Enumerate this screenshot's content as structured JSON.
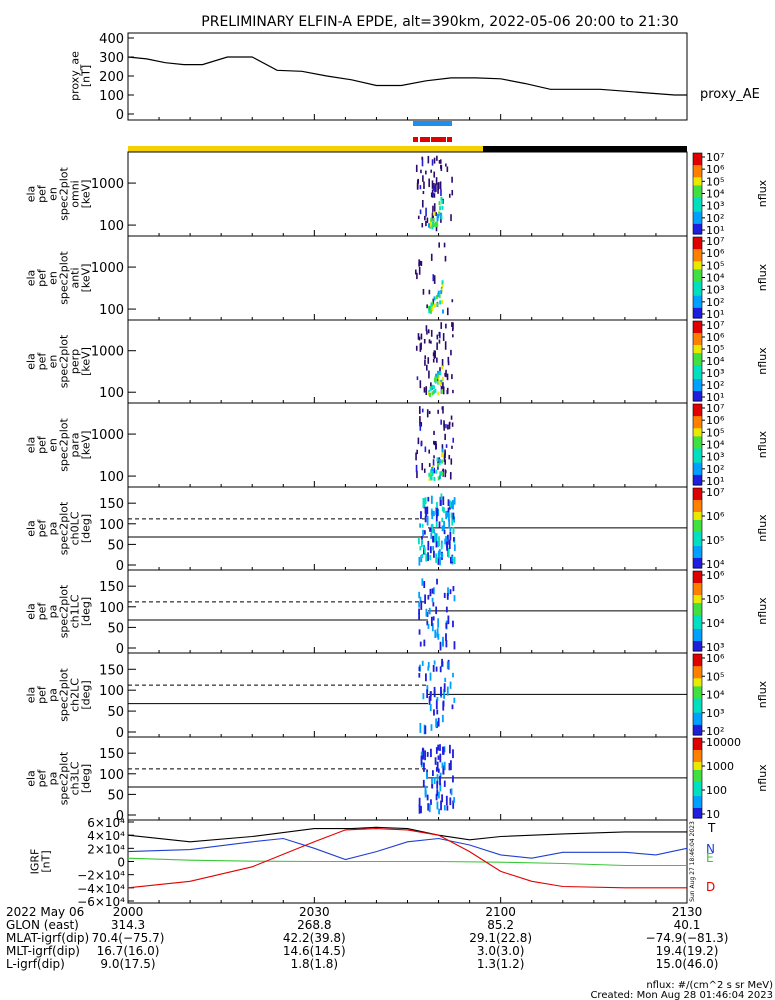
{
  "title": "PRELIMINARY ELFIN-A EPDE, alt=390km, 2022-05-06 20:00 to 21:30",
  "colors": {
    "day": "#f5d000",
    "night": "#000000",
    "blue_bar": "#1e8ff0",
    "red_bar": "#e00000"
  },
  "chart_data": [
    {
      "name": "proxy_ae",
      "type": "line",
      "ylabel_lines": [
        "proxy_ae",
        "[nT]"
      ],
      "right_label": "proxy_AE",
      "ylim": [
        0,
        400
      ],
      "yticks": [
        "400",
        "300",
        "200",
        "100",
        "0"
      ],
      "x": [
        0,
        3,
        6,
        9,
        12,
        16,
        20,
        24,
        28,
        32,
        36,
        40,
        44,
        48,
        52,
        56,
        60,
        64,
        68,
        72,
        76,
        80,
        84,
        88,
        90
      ],
      "values": [
        300,
        290,
        270,
        260,
        260,
        300,
        300,
        230,
        225,
        200,
        180,
        150,
        150,
        175,
        190,
        190,
        185,
        160,
        130,
        130,
        130,
        120,
        110,
        100,
        100
      ]
    },
    {
      "name": "omni",
      "type": "heatmap",
      "ylabel_lines": [
        "ela",
        "pef",
        "en",
        "spec2plot",
        "omni",
        "[keV]"
      ],
      "yticks": [
        "1000",
        "100"
      ],
      "scale": "log",
      "colorbar_ticks": [
        "10⁷",
        "10⁶",
        "10⁵",
        "10⁴",
        "10³",
        "10²",
        "10¹"
      ],
      "colorbar_label": "nflux"
    },
    {
      "name": "anti",
      "type": "heatmap",
      "ylabel_lines": [
        "ela",
        "pef",
        "en",
        "spec2plot",
        "anti",
        "[keV]"
      ],
      "yticks": [
        "1000",
        "100"
      ],
      "scale": "log",
      "colorbar_ticks": [
        "10⁷",
        "10⁶",
        "10⁵",
        "10⁴",
        "10³",
        "10²",
        "10¹"
      ],
      "colorbar_label": "nflux"
    },
    {
      "name": "perp",
      "type": "heatmap",
      "ylabel_lines": [
        "ela",
        "pef",
        "en",
        "spec2plot",
        "perp",
        "[keV]"
      ],
      "yticks": [
        "1000",
        "100"
      ],
      "scale": "log",
      "colorbar_ticks": [
        "10⁷",
        "10⁶",
        "10⁵",
        "10⁴",
        "10³",
        "10²",
        "10¹"
      ],
      "colorbar_label": "nflux"
    },
    {
      "name": "para",
      "type": "heatmap",
      "ylabel_lines": [
        "ela",
        "pef",
        "en",
        "spec2plot",
        "para",
        "[keV]"
      ],
      "yticks": [
        "1000",
        "100"
      ],
      "scale": "log",
      "colorbar_ticks": [
        "10⁷",
        "10⁶",
        "10⁵",
        "10⁴",
        "10³",
        "10²",
        "10¹"
      ],
      "colorbar_label": "nflux"
    },
    {
      "name": "ch0LC",
      "type": "heatmap",
      "ylabel_lines": [
        "ela",
        "pef",
        "pa",
        "spec2plot",
        "ch0LC",
        "[deg]"
      ],
      "yticks": [
        "150",
        "100",
        "50",
        "0"
      ],
      "ylim": [
        0,
        180
      ],
      "colorbar_ticks": [
        "10⁷",
        "10⁶",
        "10⁵",
        "10⁴"
      ],
      "colorbar_label": "nflux"
    },
    {
      "name": "ch1LC",
      "type": "heatmap",
      "ylabel_lines": [
        "ela",
        "pef",
        "pa",
        "spec2plot",
        "ch1LC",
        "[deg]"
      ],
      "yticks": [
        "150",
        "100",
        "50",
        "0"
      ],
      "ylim": [
        0,
        180
      ],
      "colorbar_ticks": [
        "10⁶",
        "10⁵",
        "10⁴",
        "10³"
      ],
      "colorbar_label": "nflux"
    },
    {
      "name": "ch2LC",
      "type": "heatmap",
      "ylabel_lines": [
        "ela",
        "pef",
        "pa",
        "spec2plot",
        "ch2LC",
        "[deg]"
      ],
      "yticks": [
        "150",
        "100",
        "50",
        "0"
      ],
      "ylim": [
        0,
        180
      ],
      "colorbar_ticks": [
        "10⁶",
        "10⁵",
        "10⁴",
        "10³",
        "10²"
      ],
      "colorbar_label": "nflux"
    },
    {
      "name": "ch3LC",
      "type": "heatmap",
      "ylabel_lines": [
        "ela",
        "pef",
        "pa",
        "spec2plot",
        "ch3LC",
        "[deg]"
      ],
      "yticks": [
        "150",
        "100",
        "50",
        "0"
      ],
      "ylim": [
        0,
        180
      ],
      "colorbar_ticks": [
        "10000",
        "1000",
        "100",
        "10"
      ],
      "colorbar_label": "nflux"
    },
    {
      "name": "IGRF",
      "type": "line",
      "ylabel_lines": [
        "IGRF",
        "[nT]"
      ],
      "yticks": [
        "6×10⁴",
        "4×10⁴",
        "2×10⁴",
        "0",
        "−2×10⁴",
        "−4×10⁴",
        "−6×10⁴"
      ],
      "ylim": [
        -60000,
        60000
      ],
      "series": [
        {
          "name": "T",
          "color": "#000000",
          "x": [
            0,
            10,
            20,
            30,
            36,
            40,
            45,
            50,
            55,
            60,
            70,
            80,
            90
          ],
          "values": [
            40000,
            30000,
            38000,
            50000,
            50000,
            52000,
            50000,
            40000,
            33000,
            38000,
            42000,
            45000,
            45000
          ]
        },
        {
          "name": "N",
          "color": "#1f3fd0",
          "x": [
            0,
            10,
            20,
            25,
            30,
            35,
            40,
            45,
            50,
            55,
            60,
            65,
            70,
            80,
            85,
            90
          ],
          "values": [
            15000,
            18000,
            30000,
            35000,
            20000,
            3000,
            15000,
            30000,
            35000,
            25000,
            10000,
            5000,
            14000,
            14000,
            10000,
            20000
          ]
        },
        {
          "name": "E",
          "color": "#39c839",
          "x": [
            0,
            10,
            20,
            30,
            40,
            50,
            60,
            70,
            80,
            90
          ],
          "values": [
            5000,
            2000,
            500,
            0,
            0,
            0,
            -1000,
            -3000,
            -6000,
            -6000
          ]
        },
        {
          "name": "D",
          "color": "#e00000",
          "x": [
            0,
            10,
            20,
            30,
            35,
            40,
            45,
            50,
            55,
            60,
            65,
            70,
            80,
            90
          ],
          "values": [
            -40000,
            -30000,
            -8000,
            30000,
            48000,
            50000,
            48000,
            40000,
            15000,
            -15000,
            -30000,
            -38000,
            -40000,
            -40000
          ]
        }
      ],
      "right_rotated_label": "Sun Aug 27 18:46:04 2023"
    }
  ],
  "x_axis": {
    "row_labels": [
      "2022 May 06",
      "GLON (east)",
      "MLAT-igrf(dip)",
      "MLT-igrf(dip)",
      "L-igrf(dip)"
    ],
    "columns": [
      {
        "time": "2000",
        "glon": "314.3",
        "mlat": "70.4(−75.7)",
        "mlt": "16.7(16.0)",
        "l": "9.0(17.5)"
      },
      {
        "time": "2030",
        "glon": "268.8",
        "mlat": "42.2(39.8)",
        "mlt": "14.6(14.5)",
        "l": "1.8(1.8)"
      },
      {
        "time": "2100",
        "glon": "85.2",
        "mlat": "29.1(22.8)",
        "mlt": "3.0(3.0)",
        "l": "1.3(1.2)"
      },
      {
        "time": "2130",
        "glon": "40.1",
        "mlat": "−74.9(−81.3)",
        "mlt": "19.4(19.2)",
        "l": "15.0(46.0)"
      }
    ]
  },
  "footer": {
    "units": "nflux: #/(cm^2 s sr MeV)",
    "created": "Created: Mon Aug 28 01:46:04 2023"
  }
}
